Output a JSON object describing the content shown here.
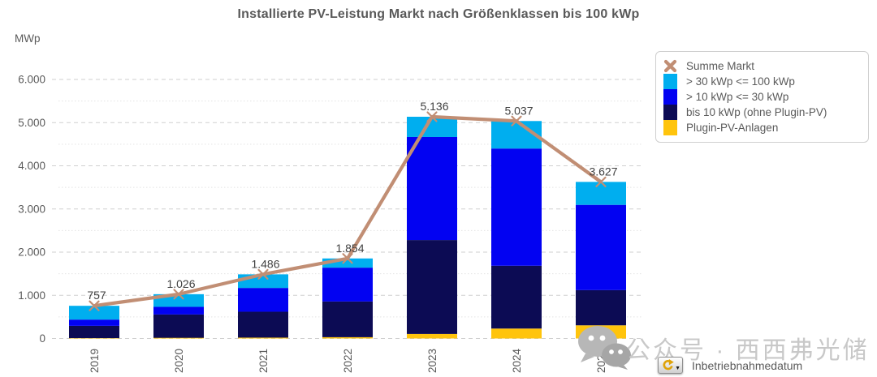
{
  "title": "Installierte PV-Leistung Markt nach Größenklassen bis 100 kWp",
  "y_axis": {
    "unit_label": "MWp",
    "tick_labels": [
      "0",
      "1.000",
      "2.000",
      "3.000",
      "4.000",
      "5.000",
      "6.000"
    ]
  },
  "x_axis": {
    "field_label": "Inbetriebnahmedatum",
    "categories": [
      "2019",
      "2020",
      "2021",
      "2022",
      "2023",
      "2024",
      "2025"
    ]
  },
  "legend": {
    "items": [
      {
        "key": "summe-markt",
        "label": "Summe Markt",
        "marker": "x",
        "color": "#C18E74"
      },
      {
        "key": "gt30-le100",
        "label": "> 30 kWp <= 100 kWp",
        "marker": "square",
        "color": "#00AEEF"
      },
      {
        "key": "gt10-le30",
        "label": "> 10 kWp <= 30 kWp",
        "marker": "square",
        "color": "#0202F2"
      },
      {
        "key": "le10",
        "label": "bis 10 kWp (ohne Plugin-PV)",
        "marker": "square",
        "color": "#0C0B54"
      },
      {
        "key": "plugin",
        "label": "Plugin-PV-Anlagen",
        "marker": "square",
        "color": "#FFC40C"
      }
    ]
  },
  "watermark": {
    "text": "公众号 · 西西弗光储"
  },
  "chart_data": {
    "type": "bar",
    "stacked": true,
    "title": "Installierte PV-Leistung Markt nach Größenklassen bis 100 kWp",
    "ylabel": "MWp",
    "ylim": [
      0,
      6000
    ],
    "grid": {
      "major_step": 1000,
      "minor_step": 500,
      "major_style": "dashed",
      "minor_style": "dotted"
    },
    "legend_position": "top-right",
    "categories": [
      "2019",
      "2020",
      "2021",
      "2022",
      "2023",
      "2024",
      "2025"
    ],
    "series": [
      {
        "key": "plugin",
        "name": "Plugin-PV-Anlagen",
        "color": "#FFC40C",
        "values": [
          8,
          15,
          20,
          30,
          105,
          230,
          305
        ]
      },
      {
        "key": "le10",
        "name": "bis 10 kWp (ohne Plugin-PV)",
        "color": "#0C0B54",
        "values": [
          285,
          541,
          600,
          827,
          2175,
          1455,
          815
        ]
      },
      {
        "key": "gt10-le30",
        "name": "> 10 kWp <= 30 kWp",
        "color": "#0202F2",
        "values": [
          145,
          177,
          551,
          784,
          2387,
          2715,
          1975
        ]
      },
      {
        "key": "gt30-le100",
        "name": "> 30 kWp <= 100 kWp",
        "color": "#00AEEF",
        "values": [
          319,
          293,
          315,
          213,
          469,
          637,
          532
        ]
      }
    ],
    "line_series": {
      "name": "Summe Markt",
      "color": "#C18E74",
      "marker": "x",
      "values": [
        757,
        1026,
        1486,
        1854,
        5136,
        5037,
        3627
      ]
    },
    "total_labels": [
      "757",
      "1.026",
      "1.486",
      "1.854",
      "5.136",
      "5.037",
      "3.627"
    ]
  }
}
